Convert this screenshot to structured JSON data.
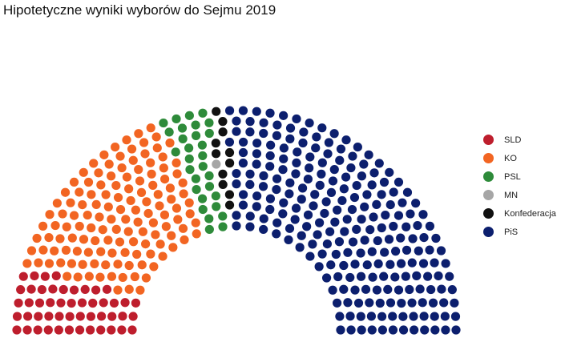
{
  "chart_data": {
    "type": "parliament",
    "title": "Hipotetyczne wyniki wyborów do Sejmu 2019",
    "legend_position": "right",
    "total_seats": 460,
    "parties": [
      {
        "name": "SLD",
        "seats": 49,
        "color": "#be1e2d"
      },
      {
        "name": "KO",
        "seats": 134,
        "color": "#f26522"
      },
      {
        "name": "PSL",
        "seats": 30,
        "color": "#2e8b3a"
      },
      {
        "name": "MN",
        "seats": 1,
        "color": "#a6a6a6"
      },
      {
        "name": "Konfederacja",
        "seats": 11,
        "color": "#111111"
      },
      {
        "name": "PiS",
        "seats": 235,
        "color": "#0c1f6e"
      }
    ]
  }
}
